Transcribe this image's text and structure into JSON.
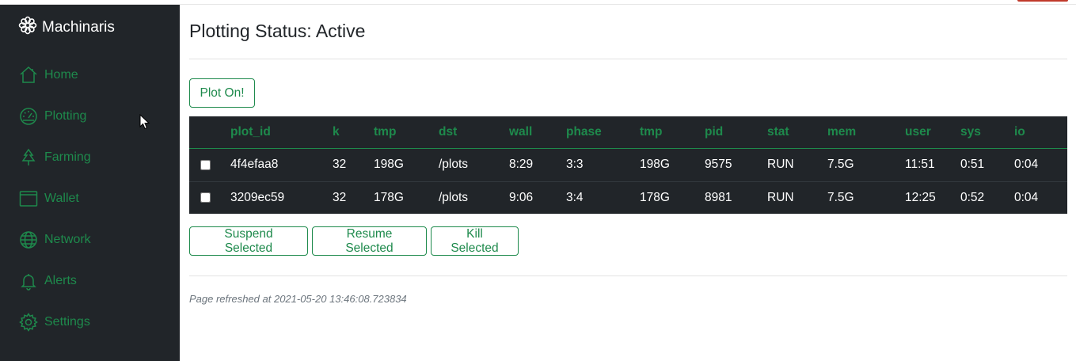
{
  "colors": {
    "sidebar_bg": "#212529",
    "accent_green": "#1e8a4c",
    "table_bg": "#212529"
  },
  "sidebar": {
    "brand": "Machinaris",
    "brand_icon": "flower-icon",
    "items": [
      {
        "label": "Home",
        "icon": "home-icon"
      },
      {
        "label": "Plotting",
        "icon": "gauge-icon"
      },
      {
        "label": "Farming",
        "icon": "tree-icon"
      },
      {
        "label": "Wallet",
        "icon": "wallet-icon"
      },
      {
        "label": "Network",
        "icon": "globe-icon"
      },
      {
        "label": "Alerts",
        "icon": "bell-icon"
      },
      {
        "label": "Settings",
        "icon": "gear-icon"
      }
    ]
  },
  "main": {
    "title": "Plotting Status: Active",
    "plot_on_label": "Plot On!",
    "table": {
      "headers": [
        "plot_id",
        "k",
        "tmp",
        "dst",
        "wall",
        "phase",
        "tmp",
        "pid",
        "stat",
        "mem",
        "user",
        "sys",
        "io"
      ],
      "rows": [
        [
          "4f4efaa8",
          "32",
          "198G",
          "/plots",
          "8:29",
          "3:3",
          "198G",
          "9575",
          "RUN",
          "7.5G",
          "11:51",
          "0:51",
          "0:04"
        ],
        [
          "3209ec59",
          "32",
          "178G",
          "/plots",
          "9:06",
          "3:4",
          "178G",
          "8981",
          "RUN",
          "7.5G",
          "12:25",
          "0:52",
          "0:04"
        ]
      ]
    },
    "actions": {
      "suspend_label": "Suspend Selected",
      "resume_label": "Resume Selected",
      "kill_label": "Kill Selected"
    },
    "refreshed": "Page refreshed at 2021-05-20 13:46:08.723834"
  }
}
